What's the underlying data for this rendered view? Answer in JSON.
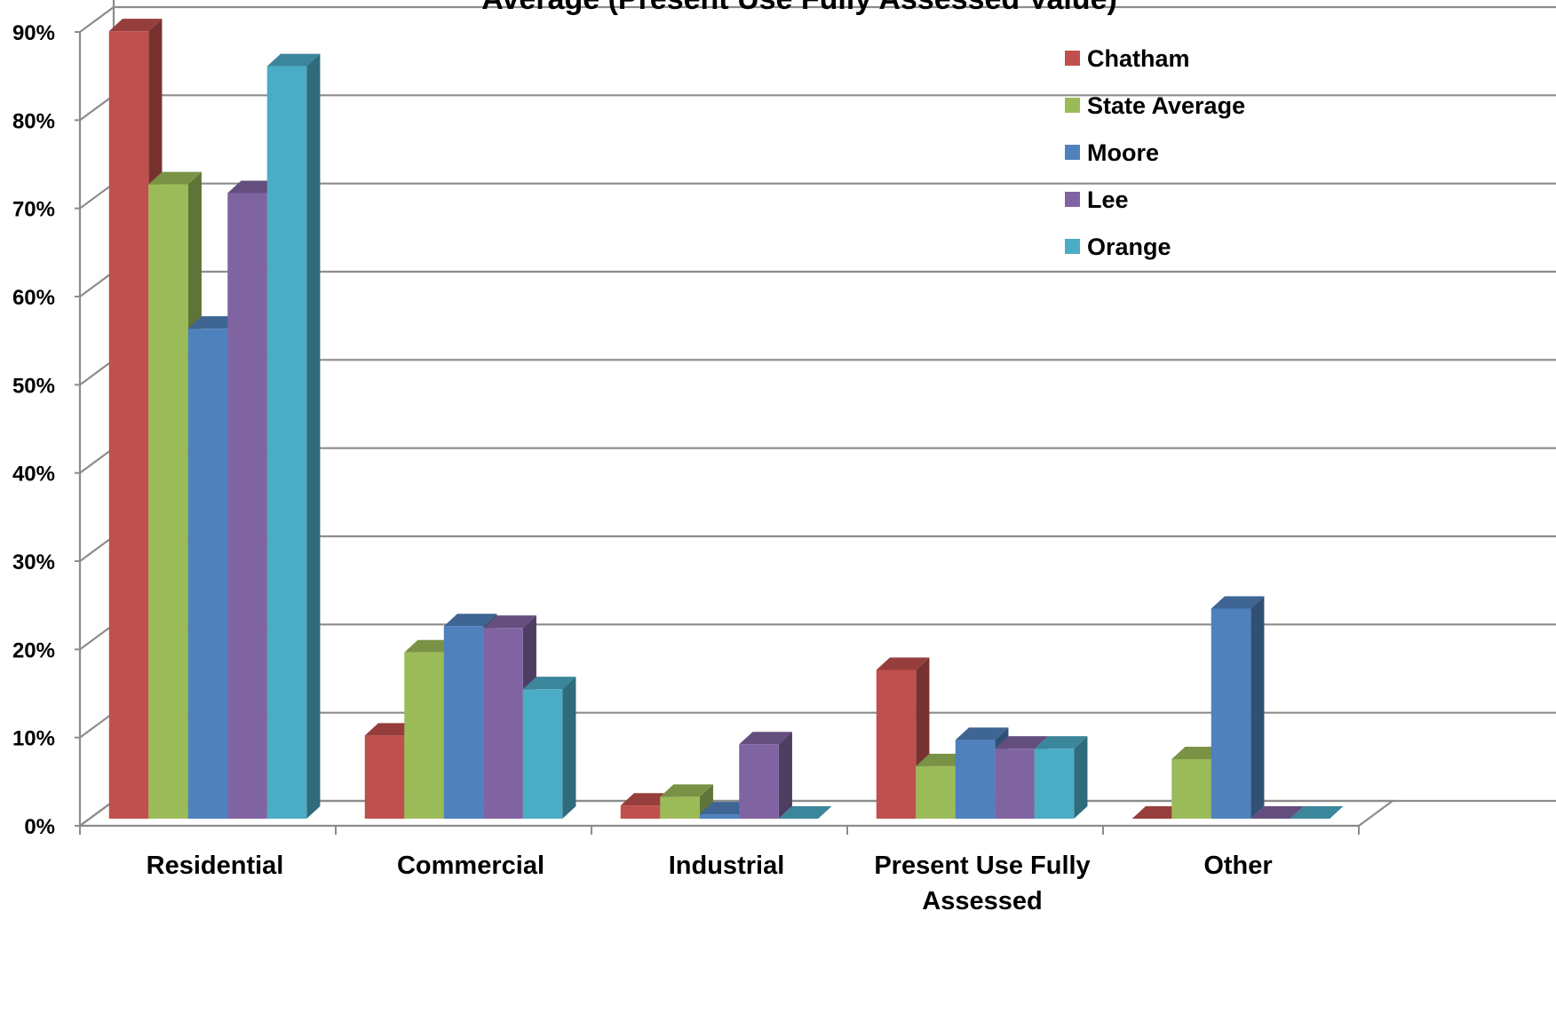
{
  "chart_data": {
    "type": "bar",
    "title": "Average (Present Use Fully Assessed Value)",
    "categories": [
      "Residential",
      "Commercial",
      "Industrial",
      "Present Use Fully Assessed",
      "Other"
    ],
    "series": [
      {
        "name": "Chatham",
        "color": "#C0504D",
        "values": [
          0.9,
          0.095,
          0.015,
          0.17,
          0.0
        ]
      },
      {
        "name": "State Average",
        "color": "#9BBB59",
        "values": [
          0.725,
          0.19,
          0.025,
          0.06,
          0.068
        ]
      },
      {
        "name": "Moore",
        "color": "#4F81BD",
        "values": [
          0.56,
          0.22,
          0.005,
          0.09,
          0.24
        ]
      },
      {
        "name": "Lee",
        "color": "#8064A2",
        "values": [
          0.715,
          0.218,
          0.085,
          0.08,
          0.0
        ]
      },
      {
        "name": "Orange",
        "color": "#4BACC6",
        "values": [
          0.86,
          0.148,
          0.0,
          0.08,
          0.0
        ]
      }
    ],
    "y_ticks": [
      "0%",
      "10%",
      "20%",
      "30%",
      "40%",
      "50%",
      "60%",
      "70%",
      "80%",
      "90%"
    ],
    "ylim": [
      0,
      0.9
    ],
    "grid": true,
    "legend_position": "top-right",
    "xlabel": "",
    "ylabel": ""
  }
}
